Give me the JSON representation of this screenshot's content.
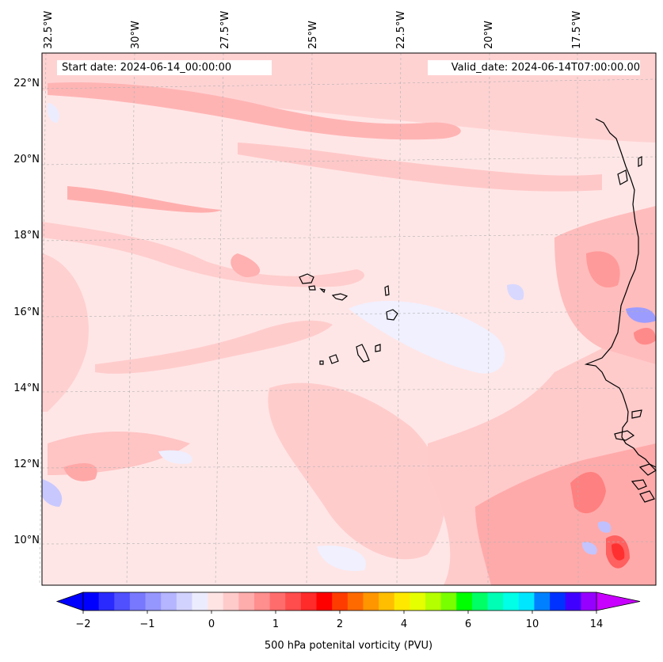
{
  "map": {
    "start_date": "Start date: 2024-06-14_00:00:00",
    "valid_date": "Valid_date: 2024-06-14T07:00:00.00",
    "lon_labels": [
      "32.5°W",
      "30°W",
      "27.5°W",
      "25°W",
      "22.5°W",
      "20°W",
      "17.5°W"
    ],
    "lat_labels": [
      "22°N",
      "20°N",
      "18°N",
      "16°N",
      "14°N",
      "12°N",
      "10°N"
    ],
    "gridlines": true,
    "region": "Cape Verde islands and West African coast (Senegal, Gambia, Guinea-Bissau)"
  },
  "colorbar": {
    "title": "500 hPa potenital vorticity (PVU)",
    "tick_labels": [
      "−2",
      "−1",
      "0",
      "1",
      "2",
      "4",
      "6",
      "10",
      "14"
    ],
    "colors": [
      "#0000ff",
      "#2a2aff",
      "#5050ff",
      "#7878ff",
      "#9696ff",
      "#b4b4ff",
      "#d2d2ff",
      "#ececff",
      "#ffe4e4",
      "#ffcaca",
      "#ffacac",
      "#ff8e8e",
      "#ff6c6c",
      "#ff4c4c",
      "#ff2a2a",
      "#ff0000",
      "#ff3c00",
      "#ff6a00",
      "#ff9600",
      "#ffbe00",
      "#ffe800",
      "#e6ff00",
      "#b4ff00",
      "#78ff00",
      "#00ff00",
      "#00ff64",
      "#00ffb4",
      "#00ffe6",
      "#00e6ff",
      "#0080ff",
      "#0032ff",
      "#4000ff",
      "#9600ff"
    ],
    "extend_low_color": "#0000ff",
    "extend_high_color": "#c800ff"
  }
}
